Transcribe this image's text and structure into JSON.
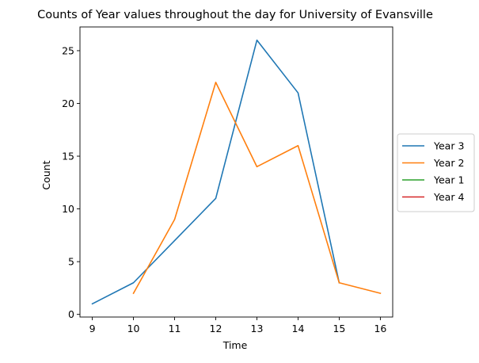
{
  "chart_data": {
    "type": "line",
    "title": "Counts of Year values throughout the day for University of Evansville",
    "xlabel": "Time",
    "ylabel": "Count",
    "xlim": [
      8.7,
      16.3
    ],
    "ylim": [
      -0.25,
      27.25
    ],
    "xticks": [
      9,
      10,
      11,
      12,
      13,
      14,
      15,
      16
    ],
    "yticks": [
      0,
      5,
      10,
      15,
      20,
      25
    ],
    "grid": false,
    "legend_position": "right, outside plot area",
    "series": [
      {
        "name": "Year 3",
        "color": "#1f77b4",
        "x": [
          9,
          10,
          11,
          12,
          13,
          14,
          15
        ],
        "y": [
          1,
          3,
          7,
          11,
          26,
          21,
          3
        ]
      },
      {
        "name": "Year 2",
        "color": "#ff7f0e",
        "x": [
          10,
          11,
          12,
          13,
          14,
          15,
          16
        ],
        "y": [
          2,
          9,
          22,
          14,
          16,
          3,
          2
        ]
      },
      {
        "name": "Year 1",
        "color": "#2ca02c",
        "x": [],
        "y": []
      },
      {
        "name": "Year 4",
        "color": "#d62728",
        "x": [],
        "y": []
      }
    ]
  }
}
